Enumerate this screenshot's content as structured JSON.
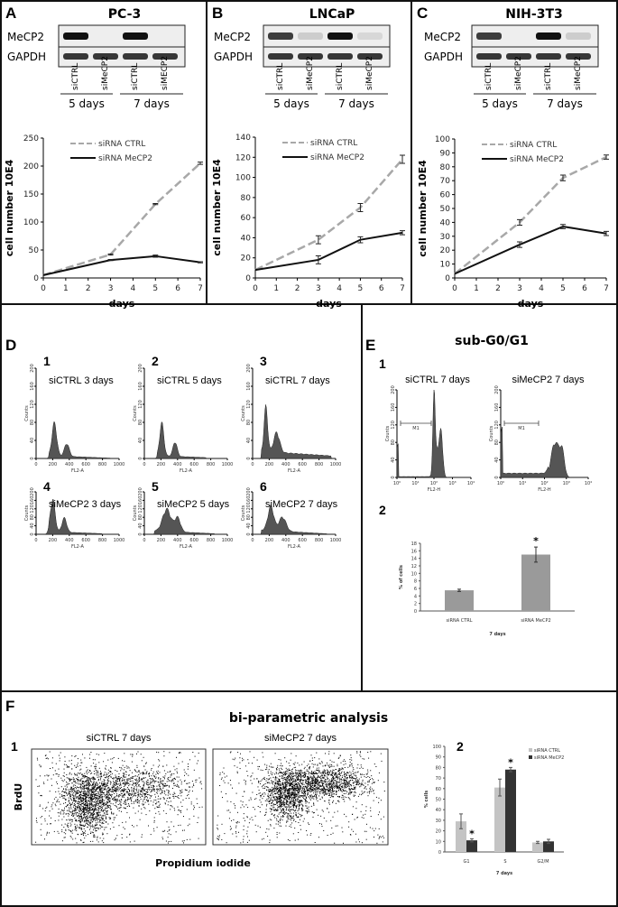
{
  "panels": {
    "A": {
      "label": "A",
      "title": "PC-3"
    },
    "B": {
      "label": "B",
      "title": "LNCaP"
    },
    "C": {
      "label": "C",
      "title": "NIH-3T3"
    },
    "D": {
      "label": "D"
    },
    "E": {
      "label": "E",
      "title": "sub-G0/G1",
      "sub1": "1",
      "sub2": "2"
    },
    "F": {
      "label": "F",
      "title": "bi-parametric analysis",
      "sub1": "1",
      "sub2": "2"
    }
  },
  "blots": {
    "rows": [
      "MeCP2",
      "GAPDH"
    ],
    "lanes": [
      "siCTRL",
      "siMeCP2",
      "siCTRL",
      "siMECP2"
    ],
    "lanes_B": [
      "siCTRL",
      "siMeCP2",
      "siCTRL",
      "siMeCP2"
    ],
    "lanes_C": [
      "siCTRL",
      "siMeCP2",
      "siCTRL",
      "siMeCP2"
    ],
    "groups": [
      "5 days",
      "7 days"
    ]
  },
  "colors": {
    "ctrl": "#a8a8a8",
    "mecp2": "#111111",
    "bar_gray": "#9a9a9a",
    "bar_dark": "#333333",
    "bar_light": "#c4c4c4"
  },
  "chart_data": [
    {
      "type": "line",
      "panel": "A",
      "ylabel": "cell number 10E4",
      "xlabel": "days",
      "x": [
        0,
        3,
        5,
        7
      ],
      "xlim": [
        0,
        7
      ],
      "xticks": [
        "0",
        "1",
        "2",
        "3",
        "4",
        "5",
        "6",
        "7"
      ],
      "ylim": [
        0,
        250
      ],
      "yticks": [
        "0",
        "50",
        "100",
        "150",
        "200",
        "250"
      ],
      "series": [
        {
          "name": "siRNA CTRL",
          "values": [
            5,
            42,
            132,
            205
          ],
          "err": [
            0,
            1,
            1,
            2
          ]
        },
        {
          "name": "siRNA MeCP2",
          "values": [
            5,
            32,
            39,
            28
          ],
          "err": [
            0,
            1,
            2,
            1
          ]
        }
      ]
    },
    {
      "type": "line",
      "panel": "B",
      "ylabel": "cell number 10E4",
      "xlabel": "days",
      "x": [
        0,
        3,
        5,
        7
      ],
      "xlim": [
        0,
        7
      ],
      "xticks": [
        "0",
        "1",
        "2",
        "3",
        "4",
        "5",
        "6",
        "7"
      ],
      "ylim": [
        0,
        140
      ],
      "yticks": [
        "0",
        "20",
        "40",
        "60",
        "80",
        "100",
        "120",
        "140"
      ],
      "series": [
        {
          "name": "siRNA CTRL",
          "values": [
            8,
            38,
            70,
            118
          ],
          "err": [
            0,
            4,
            4,
            4
          ]
        },
        {
          "name": "siRNA MeCP2",
          "values": [
            8,
            18,
            38,
            45
          ],
          "err": [
            0,
            4,
            3,
            2
          ]
        }
      ]
    },
    {
      "type": "line",
      "panel": "C",
      "ylabel": "cell number 10E4",
      "xlabel": "days",
      "x": [
        0,
        3,
        5,
        7
      ],
      "xlim": [
        0,
        7
      ],
      "xticks": [
        "0",
        "1",
        "2",
        "3",
        "4",
        "5",
        "6",
        "7"
      ],
      "ylim": [
        0,
        100
      ],
      "yticks": [
        "0",
        "10",
        "20",
        "30",
        "40",
        "50",
        "60",
        "70",
        "80",
        "90",
        "100"
      ],
      "series": [
        {
          "name": "siRNA CTRL",
          "values": [
            3,
            40,
            72,
            87
          ],
          "err": [
            0,
            2,
            2,
            1.5
          ]
        },
        {
          "name": "siRNA MeCP2",
          "values": [
            3,
            24,
            37,
            32
          ],
          "err": [
            0,
            2,
            1.5,
            1.5
          ]
        }
      ]
    },
    {
      "type": "histogram",
      "panel": "D",
      "ylabel": "Counts",
      "xlabel": "FL2-A",
      "xlim": [
        0,
        1000
      ],
      "xticks": [
        "0",
        "200",
        "400",
        "600",
        "800",
        "1000"
      ],
      "ylim": [
        0,
        200
      ],
      "yticks": [
        "0",
        "40",
        "80",
        "120",
        "160",
        "200"
      ],
      "plots": [
        {
          "num": "1",
          "title": "siCTRL 3 days"
        },
        {
          "num": "2",
          "title": "siCTRL 5 days"
        },
        {
          "num": "3",
          "title": "siCTRL 7 days"
        },
        {
          "num": "4",
          "title": "siMeCP2 3 days"
        },
        {
          "num": "5",
          "title": "siMeCP2 5 days"
        },
        {
          "num": "6",
          "title": "siMeCP2  7 days"
        }
      ]
    },
    {
      "type": "histogram",
      "panel": "E1",
      "ylabel": "Counts",
      "xlabel": "FL2-H",
      "xscale": "log",
      "xticks": [
        "10⁰",
        "10¹",
        "10²",
        "10³",
        "10⁴"
      ],
      "ylim": [
        0,
        200
      ],
      "yticks": [
        "0",
        "40",
        "80",
        "120",
        "160",
        "200"
      ],
      "marker": "M1",
      "plots": [
        {
          "title": "siCTRL 7 days"
        },
        {
          "title": "siMeCP2 7 days"
        }
      ]
    },
    {
      "type": "bar",
      "panel": "E2",
      "ylabel": "% of cells",
      "xlabel": "7 days",
      "categories": [
        "siRNA CTRL",
        "siRNA MeCP2"
      ],
      "values": [
        5.5,
        15
      ],
      "err": [
        0.3,
        2
      ],
      "significance": [
        "",
        "*"
      ],
      "ylim": [
        0,
        18
      ],
      "yticks": [
        "0",
        "2",
        "4",
        "6",
        "8",
        "10",
        "12",
        "14",
        "16",
        "18"
      ]
    },
    {
      "type": "scatter",
      "panel": "F1",
      "ylabel": "BrdU",
      "xlabel": "Propidium iodide",
      "plots": [
        {
          "title": "siCTRL 7 days"
        },
        {
          "title": "siMeCP2 7 days"
        }
      ]
    },
    {
      "type": "bar",
      "panel": "F2",
      "ylabel": "% cells",
      "xlabel": "7 days",
      "categories": [
        "G1",
        "S",
        "G2/M"
      ],
      "series": [
        {
          "name": "siRNA CTRL",
          "values": [
            29,
            61,
            9
          ],
          "err": [
            7,
            8,
            1
          ]
        },
        {
          "name": "siRNA MeCP2",
          "values": [
            11,
            78,
            10
          ],
          "err": [
            1.5,
            2,
            2
          ],
          "significance": [
            "*",
            "*",
            ""
          ]
        }
      ],
      "ylim": [
        0,
        100
      ],
      "yticks": [
        "0",
        "10",
        "20",
        "30",
        "40",
        "50",
        "60",
        "70",
        "80",
        "90",
        "100"
      ],
      "legend": "top-right"
    }
  ]
}
